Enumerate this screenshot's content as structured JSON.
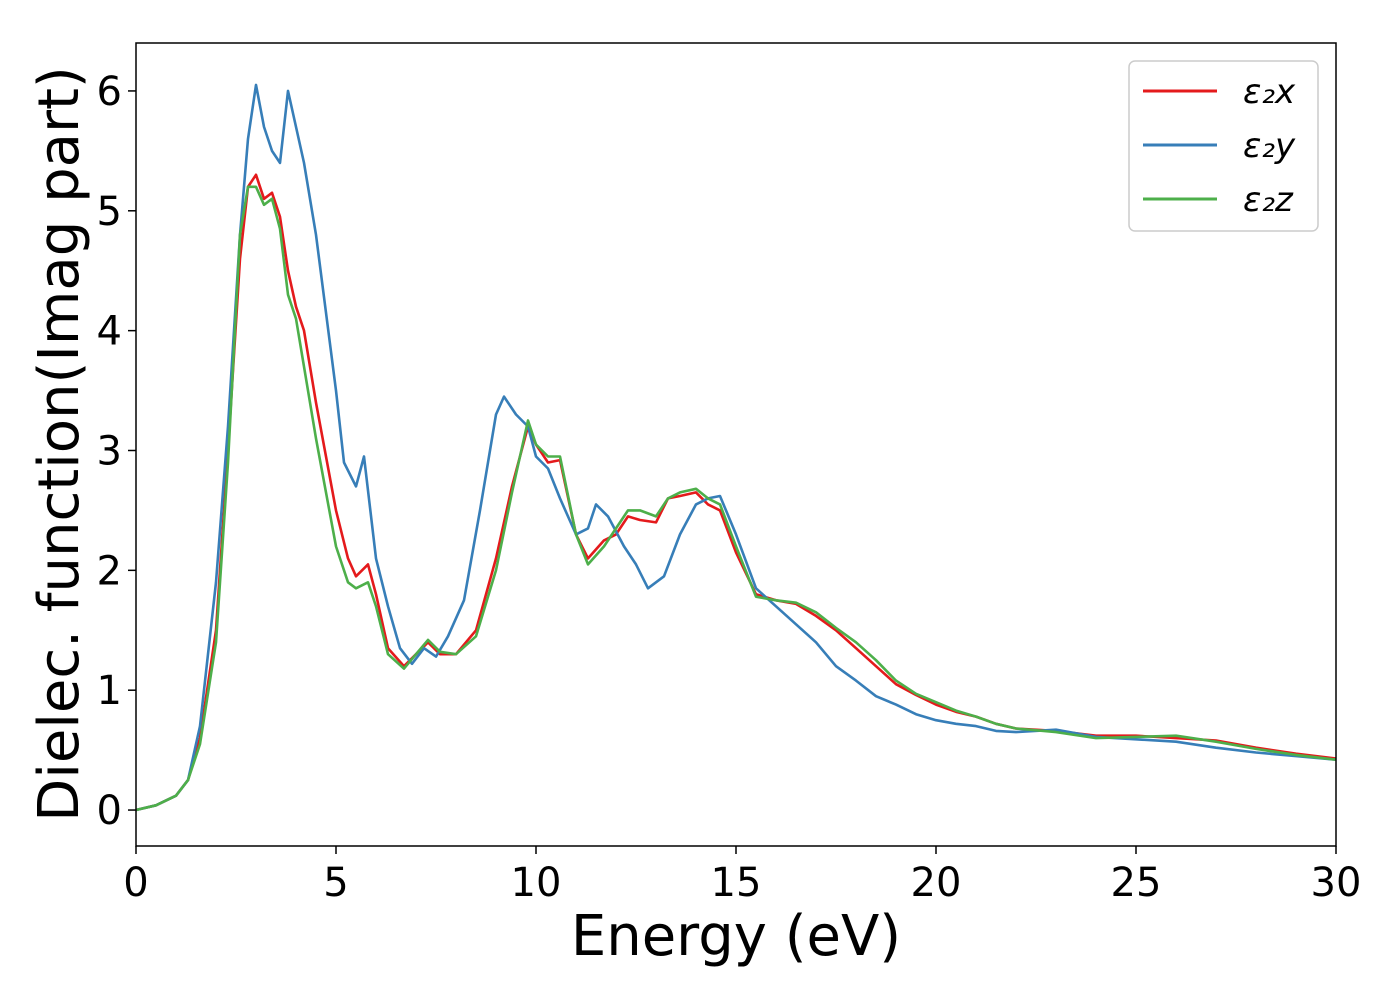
{
  "chart_data": {
    "type": "line",
    "title": "",
    "xlabel": "Energy (eV)",
    "ylabel": "Dielec. function(Imag part)",
    "xlim": [
      0,
      30
    ],
    "ylim": [
      -0.3,
      6.4
    ],
    "xticks": [
      "0",
      "5",
      "10",
      "15",
      "20",
      "25",
      "30"
    ],
    "yticks": [
      "0",
      "1",
      "2",
      "3",
      "4",
      "5",
      "6"
    ],
    "grid": false,
    "legend_placement": "top-right",
    "series": [
      {
        "name": "ε₂x",
        "color": "#e41a1c",
        "points": [
          [
            0,
            0
          ],
          [
            0.5,
            0.04
          ],
          [
            1.0,
            0.12
          ],
          [
            1.3,
            0.25
          ],
          [
            1.6,
            0.6
          ],
          [
            2.0,
            1.5
          ],
          [
            2.3,
            3.0
          ],
          [
            2.6,
            4.6
          ],
          [
            2.8,
            5.2
          ],
          [
            3.0,
            5.3
          ],
          [
            3.2,
            5.1
          ],
          [
            3.4,
            5.15
          ],
          [
            3.6,
            4.95
          ],
          [
            3.8,
            4.5
          ],
          [
            4.0,
            4.2
          ],
          [
            4.2,
            4.0
          ],
          [
            4.5,
            3.4
          ],
          [
            5.0,
            2.5
          ],
          [
            5.3,
            2.1
          ],
          [
            5.5,
            1.95
          ],
          [
            5.8,
            2.05
          ],
          [
            6.0,
            1.8
          ],
          [
            6.3,
            1.35
          ],
          [
            6.7,
            1.2
          ],
          [
            7.0,
            1.3
          ],
          [
            7.3,
            1.4
          ],
          [
            7.6,
            1.3
          ],
          [
            8.0,
            1.3
          ],
          [
            8.5,
            1.5
          ],
          [
            9.0,
            2.1
          ],
          [
            9.4,
            2.7
          ],
          [
            9.8,
            3.2
          ],
          [
            10.0,
            3.05
          ],
          [
            10.3,
            2.9
          ],
          [
            10.6,
            2.92
          ],
          [
            11.0,
            2.3
          ],
          [
            11.3,
            2.1
          ],
          [
            11.7,
            2.25
          ],
          [
            12.0,
            2.3
          ],
          [
            12.3,
            2.45
          ],
          [
            12.6,
            2.42
          ],
          [
            13.0,
            2.4
          ],
          [
            13.3,
            2.6
          ],
          [
            13.6,
            2.62
          ],
          [
            14.0,
            2.65
          ],
          [
            14.3,
            2.55
          ],
          [
            14.6,
            2.5
          ],
          [
            15.0,
            2.15
          ],
          [
            15.5,
            1.8
          ],
          [
            16.0,
            1.75
          ],
          [
            16.5,
            1.72
          ],
          [
            17.0,
            1.62
          ],
          [
            17.5,
            1.5
          ],
          [
            18.0,
            1.35
          ],
          [
            18.5,
            1.2
          ],
          [
            19.0,
            1.05
          ],
          [
            19.5,
            0.96
          ],
          [
            20.0,
            0.88
          ],
          [
            20.5,
            0.82
          ],
          [
            21.0,
            0.78
          ],
          [
            21.5,
            0.72
          ],
          [
            22.0,
            0.68
          ],
          [
            23.0,
            0.66
          ],
          [
            24.0,
            0.62
          ],
          [
            25.0,
            0.62
          ],
          [
            26.0,
            0.6
          ],
          [
            27.0,
            0.58
          ],
          [
            28.0,
            0.52
          ],
          [
            29.0,
            0.47
          ],
          [
            30.0,
            0.43
          ]
        ]
      },
      {
        "name": "ε₂y",
        "color": "#377eb8",
        "points": [
          [
            0,
            0
          ],
          [
            0.5,
            0.04
          ],
          [
            1.0,
            0.12
          ],
          [
            1.3,
            0.25
          ],
          [
            1.6,
            0.7
          ],
          [
            2.0,
            1.9
          ],
          [
            2.3,
            3.2
          ],
          [
            2.6,
            4.8
          ],
          [
            2.8,
            5.6
          ],
          [
            3.0,
            6.05
          ],
          [
            3.2,
            5.7
          ],
          [
            3.4,
            5.5
          ],
          [
            3.6,
            5.4
          ],
          [
            3.8,
            6.0
          ],
          [
            4.0,
            5.7
          ],
          [
            4.2,
            5.4
          ],
          [
            4.5,
            4.8
          ],
          [
            5.0,
            3.5
          ],
          [
            5.2,
            2.9
          ],
          [
            5.5,
            2.7
          ],
          [
            5.7,
            2.95
          ],
          [
            6.0,
            2.1
          ],
          [
            6.3,
            1.7
          ],
          [
            6.6,
            1.35
          ],
          [
            6.9,
            1.22
          ],
          [
            7.2,
            1.35
          ],
          [
            7.5,
            1.28
          ],
          [
            7.8,
            1.45
          ],
          [
            8.2,
            1.75
          ],
          [
            8.6,
            2.5
          ],
          [
            9.0,
            3.3
          ],
          [
            9.2,
            3.45
          ],
          [
            9.5,
            3.3
          ],
          [
            9.8,
            3.2
          ],
          [
            10.0,
            2.95
          ],
          [
            10.3,
            2.85
          ],
          [
            10.6,
            2.6
          ],
          [
            11.0,
            2.3
          ],
          [
            11.3,
            2.35
          ],
          [
            11.5,
            2.55
          ],
          [
            11.8,
            2.45
          ],
          [
            12.2,
            2.2
          ],
          [
            12.5,
            2.05
          ],
          [
            12.8,
            1.85
          ],
          [
            13.2,
            1.95
          ],
          [
            13.6,
            2.3
          ],
          [
            14.0,
            2.55
          ],
          [
            14.3,
            2.6
          ],
          [
            14.6,
            2.62
          ],
          [
            15.0,
            2.3
          ],
          [
            15.5,
            1.85
          ],
          [
            16.0,
            1.7
          ],
          [
            16.5,
            1.55
          ],
          [
            17.0,
            1.4
          ],
          [
            17.5,
            1.2
          ],
          [
            18.0,
            1.08
          ],
          [
            18.5,
            0.95
          ],
          [
            19.0,
            0.88
          ],
          [
            19.5,
            0.8
          ],
          [
            20.0,
            0.75
          ],
          [
            20.5,
            0.72
          ],
          [
            21.0,
            0.7
          ],
          [
            21.5,
            0.66
          ],
          [
            22.0,
            0.65
          ],
          [
            23.0,
            0.67
          ],
          [
            24.0,
            0.61
          ],
          [
            25.0,
            0.59
          ],
          [
            26.0,
            0.57
          ],
          [
            27.0,
            0.52
          ],
          [
            28.0,
            0.48
          ],
          [
            29.0,
            0.45
          ],
          [
            30.0,
            0.42
          ]
        ]
      },
      {
        "name": "ε₂z",
        "color": "#4daf4a",
        "points": [
          [
            0,
            0
          ],
          [
            0.5,
            0.04
          ],
          [
            1.0,
            0.12
          ],
          [
            1.3,
            0.25
          ],
          [
            1.6,
            0.55
          ],
          [
            2.0,
            1.4
          ],
          [
            2.3,
            2.9
          ],
          [
            2.6,
            4.8
          ],
          [
            2.8,
            5.2
          ],
          [
            3.0,
            5.2
          ],
          [
            3.2,
            5.05
          ],
          [
            3.4,
            5.1
          ],
          [
            3.6,
            4.85
          ],
          [
            3.8,
            4.3
          ],
          [
            4.0,
            4.1
          ],
          [
            4.2,
            3.7
          ],
          [
            4.5,
            3.1
          ],
          [
            5.0,
            2.2
          ],
          [
            5.3,
            1.9
          ],
          [
            5.5,
            1.85
          ],
          [
            5.8,
            1.9
          ],
          [
            6.0,
            1.7
          ],
          [
            6.3,
            1.3
          ],
          [
            6.7,
            1.18
          ],
          [
            7.0,
            1.3
          ],
          [
            7.3,
            1.42
          ],
          [
            7.6,
            1.32
          ],
          [
            8.0,
            1.3
          ],
          [
            8.5,
            1.45
          ],
          [
            9.0,
            2.0
          ],
          [
            9.4,
            2.65
          ],
          [
            9.8,
            3.25
          ],
          [
            10.0,
            3.05
          ],
          [
            10.3,
            2.95
          ],
          [
            10.6,
            2.95
          ],
          [
            11.0,
            2.3
          ],
          [
            11.3,
            2.05
          ],
          [
            11.7,
            2.2
          ],
          [
            12.0,
            2.35
          ],
          [
            12.3,
            2.5
          ],
          [
            12.6,
            2.5
          ],
          [
            13.0,
            2.45
          ],
          [
            13.3,
            2.6
          ],
          [
            13.6,
            2.65
          ],
          [
            14.0,
            2.68
          ],
          [
            14.3,
            2.6
          ],
          [
            14.6,
            2.55
          ],
          [
            15.0,
            2.2
          ],
          [
            15.5,
            1.78
          ],
          [
            16.0,
            1.75
          ],
          [
            16.5,
            1.73
          ],
          [
            17.0,
            1.65
          ],
          [
            17.5,
            1.52
          ],
          [
            18.0,
            1.4
          ],
          [
            18.5,
            1.25
          ],
          [
            19.0,
            1.08
          ],
          [
            19.5,
            0.97
          ],
          [
            20.0,
            0.9
          ],
          [
            20.5,
            0.83
          ],
          [
            21.0,
            0.78
          ],
          [
            21.5,
            0.72
          ],
          [
            22.0,
            0.68
          ],
          [
            23.0,
            0.65
          ],
          [
            24.0,
            0.6
          ],
          [
            25.0,
            0.61
          ],
          [
            26.0,
            0.62
          ],
          [
            27.0,
            0.57
          ],
          [
            28.0,
            0.51
          ],
          [
            29.0,
            0.46
          ],
          [
            30.0,
            0.42
          ]
        ]
      }
    ]
  }
}
